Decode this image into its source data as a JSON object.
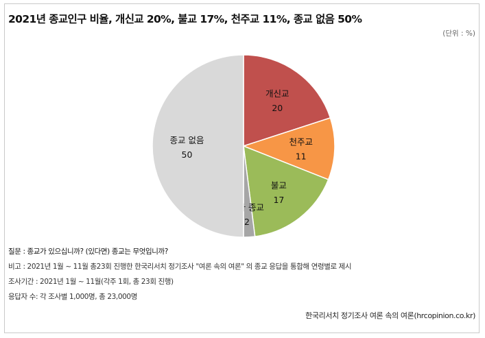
{
  "title": "2021년 종교인구 비율, 개신교 20%, 불교 17%, 천주교 11%, 종교 없음 50%",
  "unit": "(단위 : %)",
  "notes": {
    "question": "질문 : 종교가 있으십니까? (있다면) 종교는 무엇입니까?",
    "remark": "비고 : 2021년 1월 ~ 11월 총23회 진행한 한국리서치 정기조사 \"여론 속의 여론\" 의 종교 응답을 통합해 연령별로 제시",
    "period": "조사기간 : 2021년 1월 ~ 11월(각주 1회, 총 23회 진행)",
    "respondents": "응답자 수: 각 조사별 1,000명, 총 23,000명"
  },
  "source": "한국리서치 정기조사 여론 속의 여론(hrcopinion.co.kr)",
  "chart_data": {
    "type": "pie",
    "slices": [
      {
        "label": "개신교",
        "value": 20,
        "color": "#c0504d"
      },
      {
        "label": "천주교",
        "value": 11,
        "color": "#f79646"
      },
      {
        "label": "불교",
        "value": 17,
        "color": "#9bbb59"
      },
      {
        "label": "기타 종교",
        "value": 2,
        "color": "#a6a6a6"
      },
      {
        "label": "종교 없음",
        "value": 50,
        "color": "#d9d9d9"
      }
    ]
  }
}
